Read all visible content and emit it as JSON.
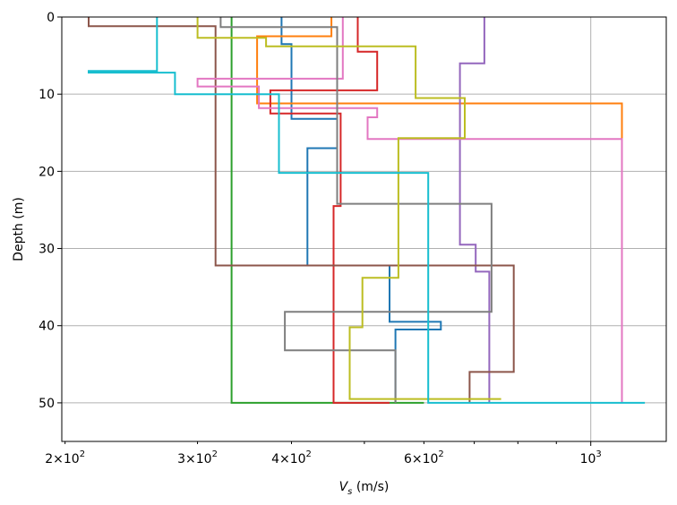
{
  "chart_data": {
    "type": "line",
    "xlabel_main": "V",
    "xlabel_sub": "s",
    "xlabel_unit": " (m/s)",
    "ylabel": "Depth (m)",
    "xscale": "log",
    "xlim": [
      198,
      1260
    ],
    "ylim": [
      55,
      0
    ],
    "inverted_y": true,
    "grid": "major",
    "x_ticks": [
      {
        "value": 200,
        "base": "2×10",
        "exp": "2"
      },
      {
        "value": 300,
        "base": "3×10",
        "exp": "2"
      },
      {
        "value": 400,
        "base": "4×10",
        "exp": "2"
      },
      {
        "value": 600,
        "base": "6×10",
        "exp": "2"
      },
      {
        "value": 1000,
        "base": "10",
        "exp": "3"
      }
    ],
    "y_ticks": [
      {
        "value": 0,
        "label": "0"
      },
      {
        "value": 10,
        "label": "10"
      },
      {
        "value": 20,
        "label": "20"
      },
      {
        "value": 30,
        "label": "30"
      },
      {
        "value": 40,
        "label": "40"
      },
      {
        "value": 50,
        "label": "50"
      }
    ],
    "series": [
      {
        "color": "#1f77b4",
        "points": [
          [
            388,
            0
          ],
          [
            388,
            3.5
          ],
          [
            400,
            3.5
          ],
          [
            400,
            13.2
          ],
          [
            460,
            13.2
          ],
          [
            460,
            17
          ],
          [
            420,
            17
          ],
          [
            420,
            32.2
          ],
          [
            540,
            32.2
          ],
          [
            540,
            39.5
          ],
          [
            632,
            39.5
          ],
          [
            632,
            40.5
          ],
          [
            550,
            40.5
          ],
          [
            550,
            50
          ]
        ]
      },
      {
        "color": "#ff7f0e",
        "points": [
          [
            452,
            0
          ],
          [
            452,
            2.5
          ],
          [
            360,
            2.5
          ],
          [
            360,
            11.2
          ],
          [
            1100,
            11.2
          ],
          [
            1100,
            50
          ]
        ]
      },
      {
        "color": "#2ca02c",
        "points": [
          [
            333,
            0
          ],
          [
            333,
            50
          ],
          [
            600,
            50
          ]
        ]
      },
      {
        "color": "#d62728",
        "points": [
          [
            490,
            0
          ],
          [
            490,
            4.5
          ],
          [
            520,
            4.5
          ],
          [
            520,
            9.5
          ],
          [
            375,
            9.5
          ],
          [
            375,
            12.5
          ],
          [
            465,
            12.5
          ],
          [
            465,
            24.5
          ],
          [
            455,
            24.5
          ],
          [
            455,
            50
          ],
          [
            540,
            50
          ]
        ]
      },
      {
        "color": "#9467bd",
        "points": [
          [
            722,
            0
          ],
          [
            722,
            6
          ],
          [
            670,
            6
          ],
          [
            670,
            29.5
          ],
          [
            703,
            29.5
          ],
          [
            703,
            33
          ],
          [
            733,
            33
          ],
          [
            733,
            50
          ]
        ]
      },
      {
        "color": "#8c564b",
        "points": [
          [
            215,
            0
          ],
          [
            215,
            1.2
          ],
          [
            317,
            1.2
          ],
          [
            317,
            32.2
          ],
          [
            790,
            32.2
          ],
          [
            790,
            46
          ],
          [
            690,
            46
          ],
          [
            690,
            50
          ]
        ]
      },
      {
        "color": "#e377c2",
        "points": [
          [
            468,
            0
          ],
          [
            468,
            8
          ],
          [
            300,
            8
          ],
          [
            300,
            9
          ],
          [
            362,
            9
          ],
          [
            362,
            11.8
          ],
          [
            520,
            11.8
          ],
          [
            520,
            13
          ],
          [
            505,
            13
          ],
          [
            505,
            15.8
          ],
          [
            1100,
            15.8
          ],
          [
            1100,
            50
          ]
        ]
      },
      {
        "color": "#7f7f7f",
        "points": [
          [
            322,
            0
          ],
          [
            322,
            1.3
          ],
          [
            460,
            1.3
          ],
          [
            460,
            24.2
          ],
          [
            738,
            24.2
          ],
          [
            738,
            38.2
          ],
          [
            392,
            38.2
          ],
          [
            392,
            43.2
          ],
          [
            550,
            43.2
          ],
          [
            550,
            50
          ]
        ]
      },
      {
        "color": "#bcbd22",
        "points": [
          [
            300,
            0
          ],
          [
            300,
            2.7
          ],
          [
            370,
            2.7
          ],
          [
            370,
            3.8
          ],
          [
            585,
            3.8
          ],
          [
            585,
            10.5
          ],
          [
            680,
            10.5
          ],
          [
            680,
            15.7
          ],
          [
            555,
            15.7
          ],
          [
            555,
            33.8
          ],
          [
            497,
            33.8
          ],
          [
            497,
            40.2
          ],
          [
            478,
            40.2
          ],
          [
            478,
            49.5
          ],
          [
            760,
            49.5
          ]
        ]
      },
      {
        "color": "#17becf",
        "points": [
          [
            265,
            0
          ],
          [
            265,
            7
          ],
          [
            215,
            7
          ],
          [
            215,
            7.2
          ],
          [
            280,
            7.2
          ],
          [
            280,
            10
          ],
          [
            385,
            10
          ],
          [
            385,
            20.2
          ],
          [
            608,
            20.2
          ],
          [
            608,
            50
          ],
          [
            1180,
            50
          ]
        ]
      }
    ]
  }
}
